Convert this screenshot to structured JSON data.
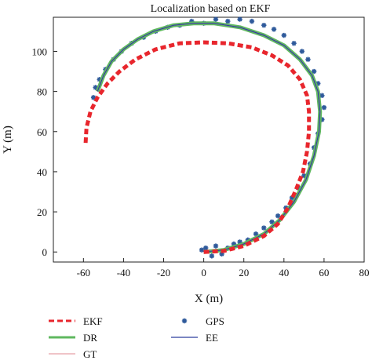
{
  "chart_data": {
    "type": "line",
    "title": "Localization based on EKF",
    "xlabel": "X (m)",
    "ylabel": "Y (m)",
    "xlim": [
      -75,
      80
    ],
    "ylim": [
      -5,
      117
    ],
    "xticks": [
      -60,
      -40,
      -20,
      0,
      20,
      40,
      60,
      80
    ],
    "yticks": [
      0,
      20,
      40,
      60,
      80,
      100
    ],
    "grid": false,
    "legend_position": "bottom",
    "series": [
      {
        "name": "EKF",
        "style": "dashed",
        "color": "#e8262d",
        "x": [
          0,
          10,
          20,
          30,
          37,
          42,
          46,
          49.5,
          51.5,
          52.5,
          52.5,
          51.5,
          48,
          42,
          34,
          24,
          12,
          0,
          -12,
          -24,
          -34,
          -42,
          -48,
          -53,
          -56.5,
          -58.5,
          -59
        ],
        "y": [
          0,
          0.5,
          3,
          8,
          14,
          22,
          31,
          40,
          50,
          60,
          70,
          78,
          86,
          93,
          98,
          102,
          104,
          104.5,
          104,
          101,
          96,
          90,
          84,
          77,
          70,
          62,
          53
        ]
      },
      {
        "name": "DR",
        "style": "solid",
        "color": "#5fb85f",
        "x": [
          0,
          10,
          20,
          30,
          38,
          45,
          51,
          55,
          57.5,
          58,
          57,
          54,
          48,
          40,
          30,
          18,
          5,
          -5,
          -15,
          -25,
          -33,
          -40,
          -46,
          -50,
          -53
        ],
        "y": [
          0,
          1,
          4,
          9,
          16,
          25,
          36,
          48,
          60,
          70,
          80,
          88,
          96,
          103,
          108,
          112,
          114,
          114,
          113,
          110,
          106,
          101,
          95,
          88,
          80
        ]
      },
      {
        "name": "GT",
        "style": "solid",
        "color": "#e8a0a8",
        "x": [
          0,
          10,
          20,
          30,
          38,
          45,
          51,
          55,
          57.5,
          58,
          57,
          54,
          48,
          40,
          30,
          18,
          5,
          -5,
          -15,
          -25,
          -33,
          -40,
          -46,
          -50,
          -53
        ],
        "y": [
          0,
          1,
          4,
          9,
          16,
          25,
          36,
          48,
          60,
          70,
          80,
          88,
          96,
          103,
          108,
          112,
          114,
          114,
          113,
          110,
          106,
          101,
          95,
          88,
          80
        ]
      },
      {
        "name": "GPS",
        "style": "markers",
        "color": "#2f5a9b",
        "x": [
          1,
          4,
          -1,
          6,
          9,
          12,
          15,
          18,
          22,
          26,
          30,
          34,
          37,
          41,
          44,
          47,
          50,
          53,
          55,
          57,
          59,
          60,
          59,
          57,
          55,
          52,
          49,
          45,
          40,
          35,
          30,
          24,
          18,
          12,
          6,
          0,
          -6,
          -12,
          -18,
          -24,
          -30,
          -36,
          -41,
          -45,
          -49,
          -52,
          -54,
          -55
        ],
        "y": [
          2,
          -2,
          1,
          3,
          -1,
          2,
          4,
          5,
          6,
          9,
          12,
          15,
          18,
          22,
          27,
          32,
          38,
          44,
          52,
          59,
          66,
          72,
          78,
          84,
          90,
          96,
          100,
          104,
          108,
          111,
          113,
          115,
          116,
          115,
          116,
          114,
          115,
          113,
          112,
          110,
          107,
          104,
          100,
          96,
          91,
          86,
          82,
          77
        ]
      },
      {
        "name": "EE",
        "style": "solid",
        "color": "#2c3e9e",
        "x": [
          0,
          10,
          20,
          30,
          38,
          45,
          51,
          55,
          57.5,
          58,
          57,
          54,
          48,
          40,
          30,
          18,
          5,
          -5,
          -15,
          -25,
          -33,
          -40,
          -46,
          -50,
          -53
        ],
        "y": [
          0,
          1,
          4,
          9,
          16,
          25,
          36,
          48,
          60,
          70,
          80,
          88,
          96,
          103,
          108,
          112,
          114,
          114,
          113,
          110,
          106,
          101,
          95,
          88,
          80
        ]
      }
    ]
  }
}
